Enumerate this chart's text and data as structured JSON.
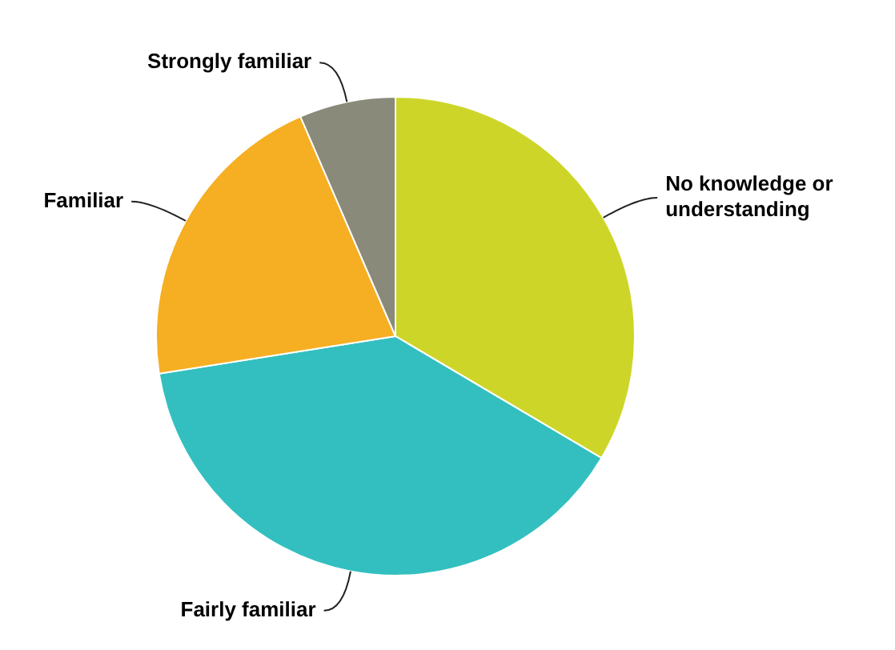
{
  "chart_data": {
    "type": "pie",
    "categories": [
      "No knowledge or understanding",
      "Fairly familiar",
      "Familiar",
      "Strongly familiar"
    ],
    "values": [
      33.5,
      39,
      21,
      6.5
    ],
    "colors": [
      "#cdd628",
      "#33bfbf",
      "#f6ae22",
      "#8a8a7a"
    ],
    "legend": false
  }
}
